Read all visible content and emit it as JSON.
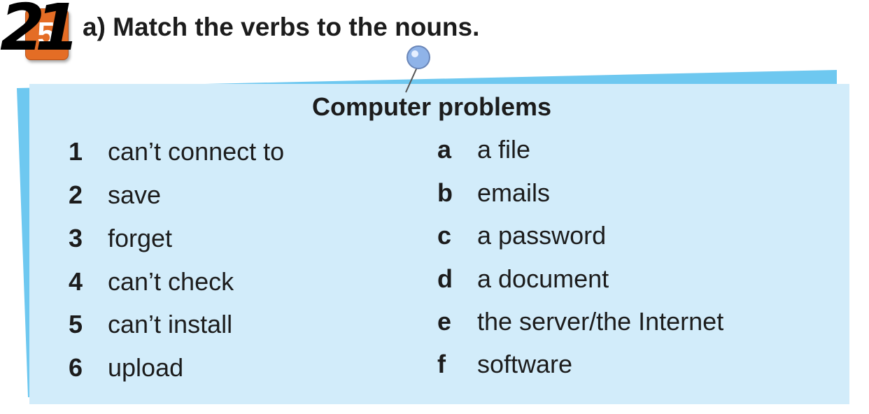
{
  "exercise": {
    "number": "21",
    "badge_number": "5",
    "instruction": "a)  Match the verbs to the nouns."
  },
  "panel": {
    "title": "Computer problems"
  },
  "verbs": [
    {
      "num": "1",
      "text": "can’t connect to"
    },
    {
      "num": "2",
      "text": "save"
    },
    {
      "num": "3",
      "text": "forget"
    },
    {
      "num": "4",
      "text": "can’t check"
    },
    {
      "num": "5",
      "text": "can’t install"
    },
    {
      "num": "6",
      "text": "upload"
    }
  ],
  "nouns": [
    {
      "letter": "a",
      "text": "a file"
    },
    {
      "letter": "b",
      "text": "emails"
    },
    {
      "letter": "c",
      "text": "a password"
    },
    {
      "letter": "d",
      "text": "a document"
    },
    {
      "letter": "e",
      "text": "the server/the Internet"
    },
    {
      "letter": "f",
      "text": "software"
    }
  ],
  "colors": {
    "panel_fill": "#d2ecfa",
    "panel_edge": "#6ec8f0",
    "badge": "#e46d25",
    "pin": "#8fb3e8"
  }
}
